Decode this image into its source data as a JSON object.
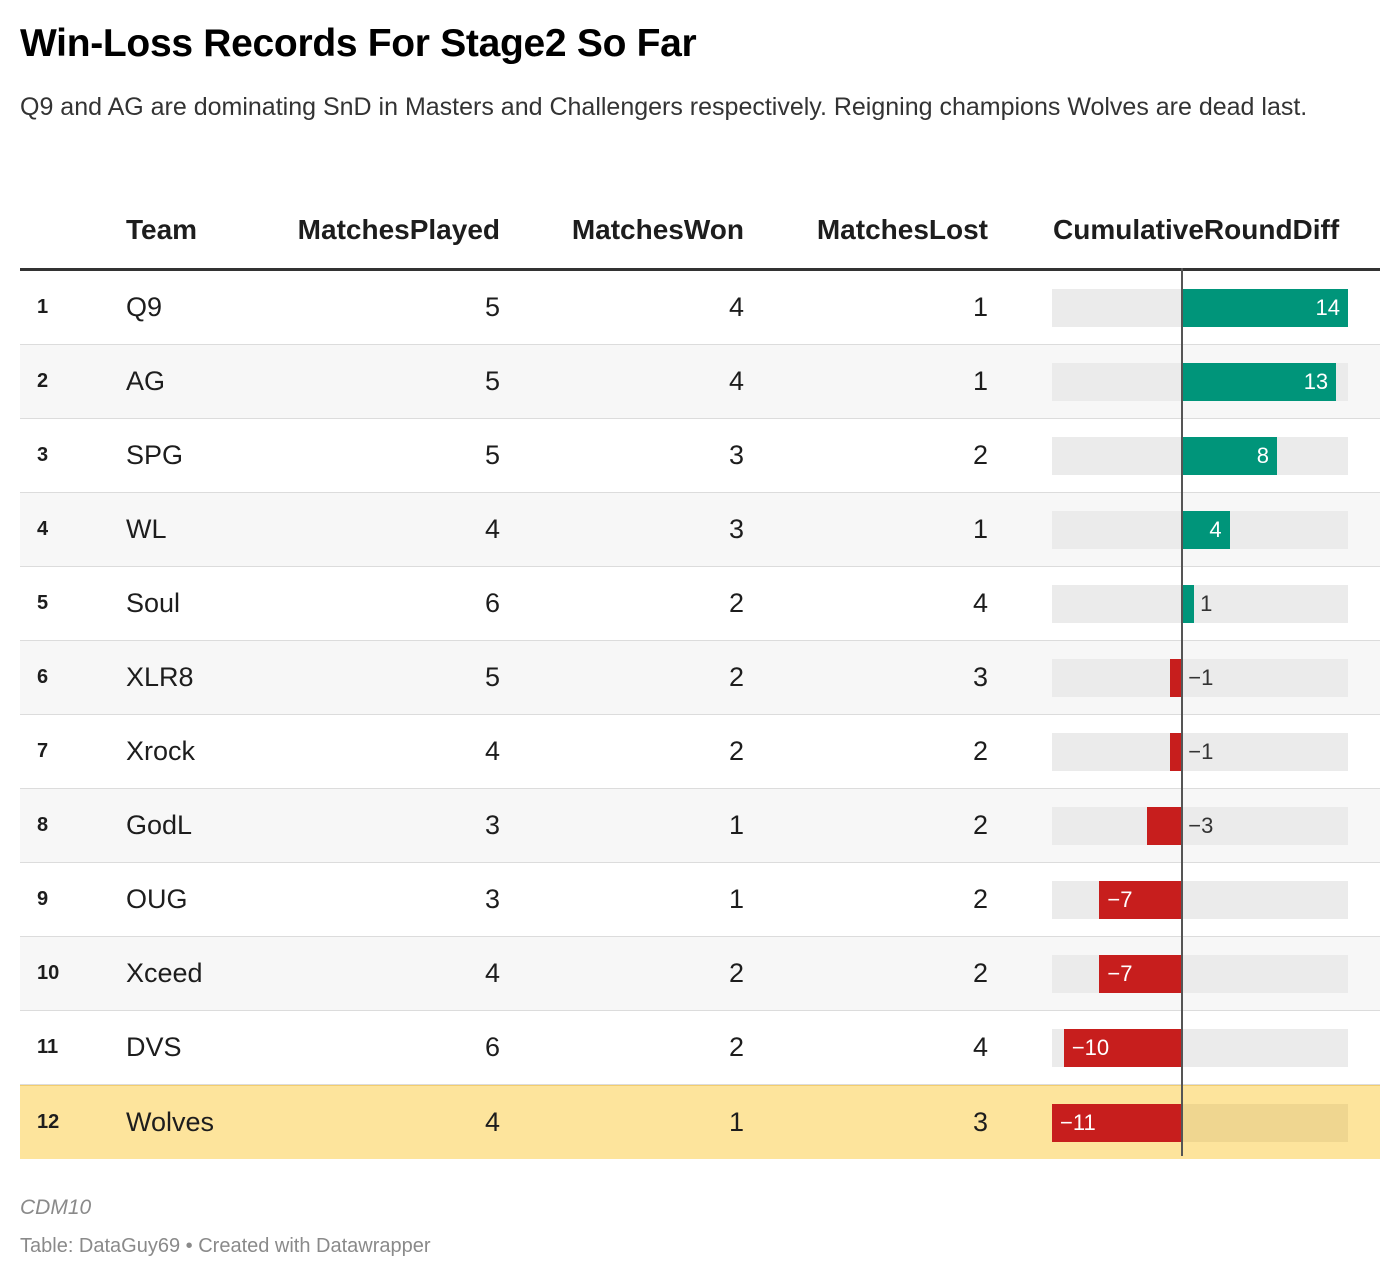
{
  "title": "Win-Loss Records For Stage2 So Far",
  "subtitle": "Q9 and AG are dominating SnD in Masters and Challengers respectively. Reigning champions Wolves are dead last.",
  "notes": "CDM10",
  "source": "Table: DataGuy69 • Created with Datawrapper",
  "colors": {
    "positive": "#00957a",
    "negative": "#c71e1d",
    "highlight": "#fde49c",
    "bar_bg": "#ebebeb"
  },
  "chart_data": {
    "type": "table",
    "columns": [
      "Team",
      "MatchesPlayed",
      "MatchesWon",
      "MatchesLost",
      "CumulativeRoundDiff"
    ],
    "bar_column": "CumulativeRoundDiff",
    "bar_range": [
      -11,
      14
    ],
    "highlighted_row": 12,
    "rows": [
      {
        "rank": "1",
        "team": "Q9",
        "played": 5,
        "won": 4,
        "lost": 1,
        "diff": 14,
        "diff_label": "14"
      },
      {
        "rank": "2",
        "team": "AG",
        "played": 5,
        "won": 4,
        "lost": 1,
        "diff": 13,
        "diff_label": "13"
      },
      {
        "rank": "3",
        "team": "SPG",
        "played": 5,
        "won": 3,
        "lost": 2,
        "diff": 8,
        "diff_label": "8"
      },
      {
        "rank": "4",
        "team": "WL",
        "played": 4,
        "won": 3,
        "lost": 1,
        "diff": 4,
        "diff_label": "4"
      },
      {
        "rank": "5",
        "team": "Soul",
        "played": 6,
        "won": 2,
        "lost": 4,
        "diff": 1,
        "diff_label": "1"
      },
      {
        "rank": "6",
        "team": "XLR8",
        "played": 5,
        "won": 2,
        "lost": 3,
        "diff": -1,
        "diff_label": "−1"
      },
      {
        "rank": "7",
        "team": "Xrock",
        "played": 4,
        "won": 2,
        "lost": 2,
        "diff": -1,
        "diff_label": "−1"
      },
      {
        "rank": "8",
        "team": "GodL",
        "played": 3,
        "won": 1,
        "lost": 2,
        "diff": -3,
        "diff_label": "−3"
      },
      {
        "rank": "9",
        "team": "OUG",
        "played": 3,
        "won": 1,
        "lost": 2,
        "diff": -7,
        "diff_label": "−7"
      },
      {
        "rank": "10",
        "team": "Xceed",
        "played": 4,
        "won": 2,
        "lost": 2,
        "diff": -7,
        "diff_label": "−7"
      },
      {
        "rank": "11",
        "team": "DVS",
        "played": 6,
        "won": 2,
        "lost": 4,
        "diff": -10,
        "diff_label": "−10"
      },
      {
        "rank": "12",
        "team": "Wolves",
        "played": 4,
        "won": 1,
        "lost": 3,
        "diff": -11,
        "diff_label": "−11"
      }
    ]
  }
}
